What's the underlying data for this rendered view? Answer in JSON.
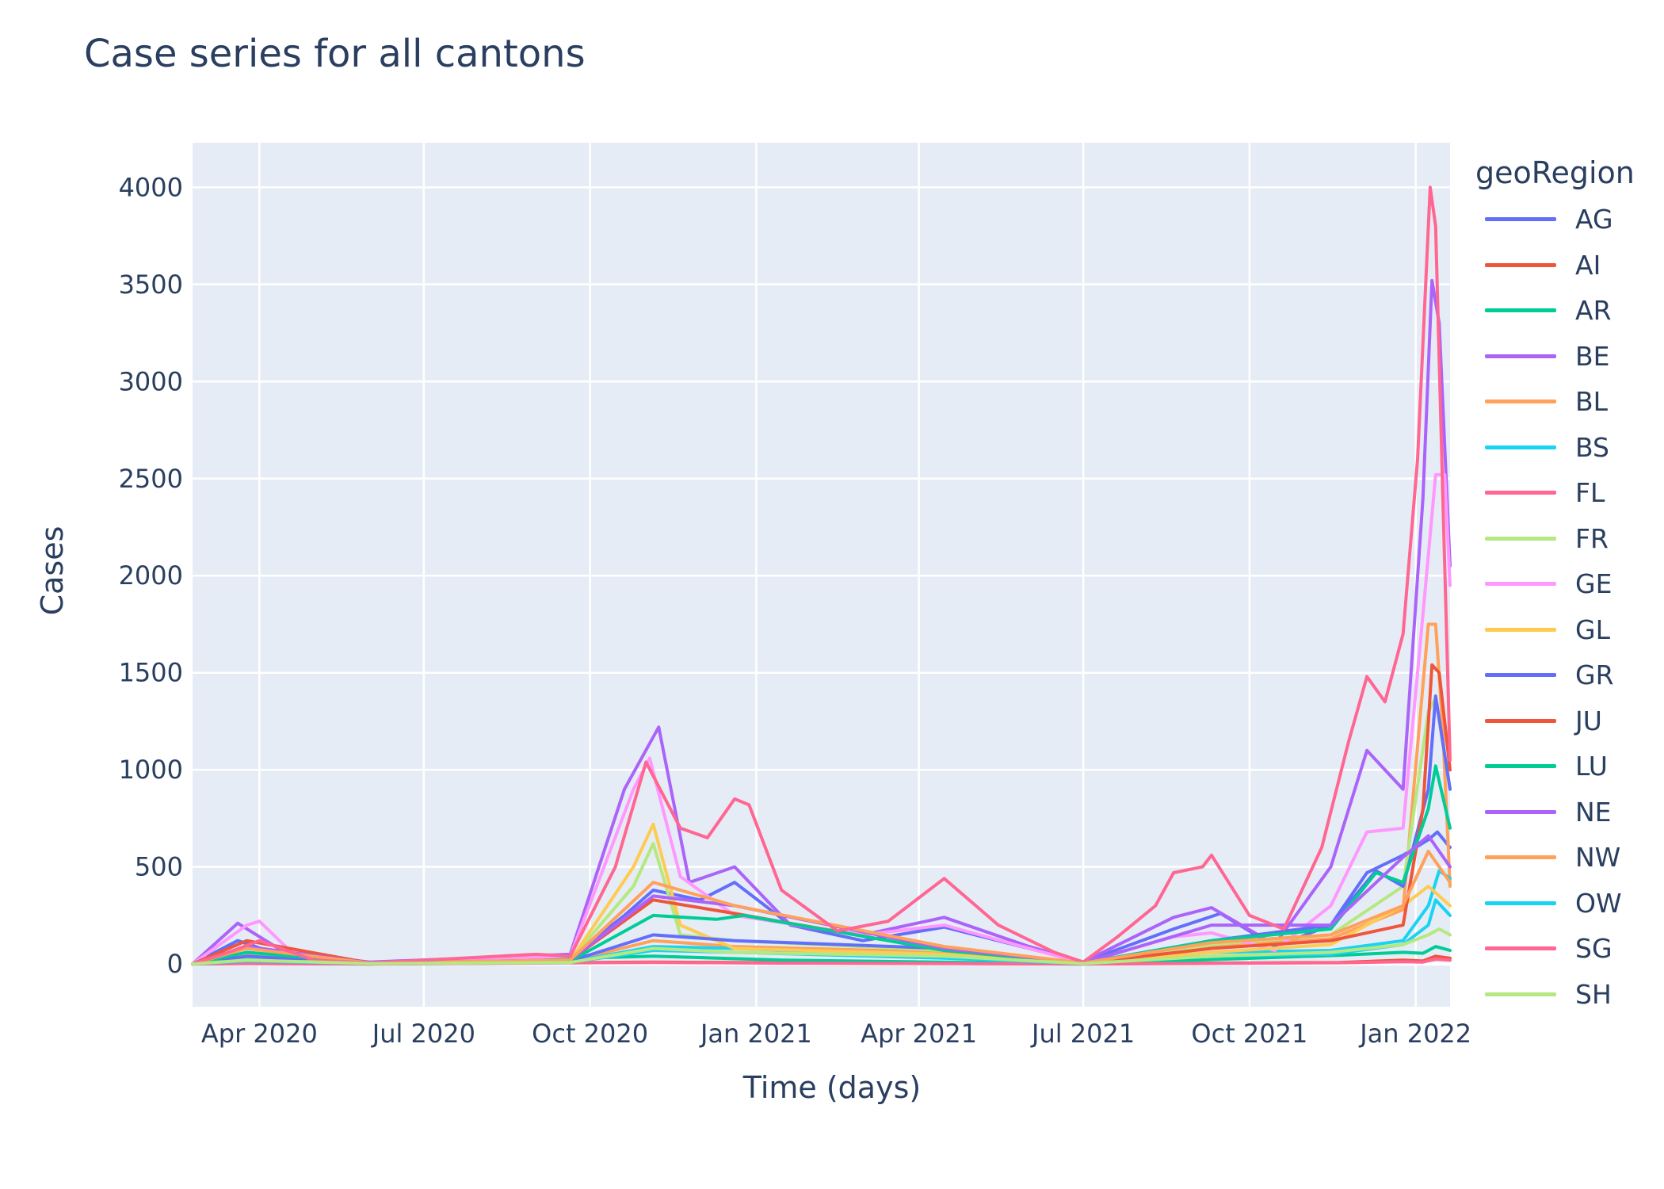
{
  "chart_data": {
    "type": "line",
    "title": "Case series for all cantons",
    "xlabel": "Time (days)",
    "ylabel": "Cases",
    "legend_title": "geoRegion",
    "legend_position": "right",
    "grid": true,
    "xlim": [
      "2020-02-24",
      "2022-01-20"
    ],
    "ylim": [
      -220,
      4230
    ],
    "x_ticks": [
      {
        "date": "2020-04-01",
        "label": "Apr 2020"
      },
      {
        "date": "2020-07-01",
        "label": "Jul 2020"
      },
      {
        "date": "2020-10-01",
        "label": "Oct 2020"
      },
      {
        "date": "2021-01-01",
        "label": "Jan 2021"
      },
      {
        "date": "2021-04-01",
        "label": "Apr 2021"
      },
      {
        "date": "2021-07-01",
        "label": "Jul 2021"
      },
      {
        "date": "2021-10-01",
        "label": "Oct 2021"
      },
      {
        "date": "2022-01-01",
        "label": "Jan 2022"
      }
    ],
    "y_ticks": [
      0,
      500,
      1000,
      1500,
      2000,
      2500,
      3000,
      3500,
      4000
    ],
    "series": [
      {
        "name": "AG",
        "color": "#636efa",
        "x": [
          "2020-02-24",
          "2020-03-20",
          "2020-04-15",
          "2020-06-01",
          "2020-09-20",
          "2020-10-20",
          "2020-11-05",
          "2020-12-01",
          "2020-12-20",
          "2021-01-20",
          "2021-03-01",
          "2021-04-15",
          "2021-06-01",
          "2021-07-01",
          "2021-08-20",
          "2021-09-15",
          "2021-10-15",
          "2021-11-15",
          "2021-12-05",
          "2021-12-25",
          "2022-01-08",
          "2022-01-13",
          "2022-01-20"
        ],
        "y": [
          0,
          120,
          40,
          5,
          30,
          250,
          380,
          330,
          420,
          200,
          120,
          190,
          80,
          10,
          180,
          260,
          90,
          200,
          470,
          560,
          640,
          680,
          600
        ]
      },
      {
        "name": "AI",
        "color": "#ef553b",
        "x": [
          "2020-02-24",
          "2020-03-25",
          "2020-06-01",
          "2020-11-05",
          "2021-01-15",
          "2021-07-01",
          "2021-11-20",
          "2021-12-25",
          "2022-01-05",
          "2022-01-12",
          "2022-01-20"
        ],
        "y": [
          0,
          3,
          0,
          10,
          6,
          0,
          8,
          20,
          15,
          40,
          30
        ]
      },
      {
        "name": "AR",
        "color": "#00cc96",
        "x": [
          "2020-02-24",
          "2020-03-25",
          "2020-06-01",
          "2020-11-05",
          "2021-01-15",
          "2021-07-01",
          "2021-11-20",
          "2021-12-25",
          "2022-01-05",
          "2022-01-12",
          "2022-01-20"
        ],
        "y": [
          0,
          8,
          0,
          40,
          20,
          0,
          45,
          60,
          55,
          90,
          70
        ]
      },
      {
        "name": "BE",
        "color": "#ab63fa",
        "x": [
          "2020-02-24",
          "2020-03-20",
          "2020-04-15",
          "2020-06-01",
          "2020-09-20",
          "2020-10-20",
          "2020-11-08",
          "2020-11-25",
          "2020-12-20",
          "2021-01-20",
          "2021-03-01",
          "2021-04-15",
          "2021-06-01",
          "2021-07-01",
          "2021-08-20",
          "2021-09-10",
          "2021-10-15",
          "2021-11-15",
          "2021-12-05",
          "2021-12-25",
          "2022-01-05",
          "2022-01-10",
          "2022-01-14",
          "2022-01-20"
        ],
        "y": [
          0,
          210,
          60,
          10,
          50,
          900,
          1220,
          420,
          500,
          200,
          150,
          240,
          90,
          10,
          240,
          290,
          100,
          500,
          1100,
          900,
          2400,
          3520,
          3300,
          2050
        ]
      },
      {
        "name": "BL",
        "color": "#ffa15a",
        "x": [
          "2020-02-24",
          "2020-03-25",
          "2020-06-01",
          "2020-09-20",
          "2020-11-05",
          "2020-12-20",
          "2021-04-15",
          "2021-07-01",
          "2021-09-10",
          "2021-11-15",
          "2021-12-25",
          "2022-01-08",
          "2022-01-12",
          "2022-01-16",
          "2022-01-20"
        ],
        "y": [
          0,
          50,
          5,
          15,
          120,
          90,
          60,
          5,
          90,
          130,
          280,
          1750,
          1750,
          1200,
          400
        ]
      },
      {
        "name": "BS",
        "color": "#19d3f3",
        "x": [
          "2020-02-24",
          "2020-03-25",
          "2020-06-01",
          "2020-09-20",
          "2020-11-05",
          "2020-12-20",
          "2021-04-15",
          "2021-07-01",
          "2021-09-10",
          "2021-11-15",
          "2021-12-25",
          "2022-01-08",
          "2022-01-14",
          "2022-01-20"
        ],
        "y": [
          0,
          30,
          3,
          10,
          90,
          80,
          40,
          3,
          60,
          70,
          120,
          300,
          480,
          440
        ]
      },
      {
        "name": "FL",
        "color": "#ff6692",
        "x": [
          "2020-02-24",
          "2020-03-25",
          "2020-06-01",
          "2020-11-05",
          "2021-01-15",
          "2021-07-01",
          "2021-11-20",
          "2021-12-25",
          "2022-01-05",
          "2022-01-12",
          "2022-01-20"
        ],
        "y": [
          0,
          2,
          0,
          8,
          4,
          0,
          6,
          12,
          10,
          25,
          20
        ]
      },
      {
        "name": "FR",
        "color": "#b6e880",
        "x": [
          "2020-02-24",
          "2020-03-25",
          "2020-06-01",
          "2020-09-20",
          "2020-10-25",
          "2020-11-05",
          "2020-11-20",
          "2020-12-20",
          "2021-04-15",
          "2021-07-01",
          "2021-09-10",
          "2021-11-15",
          "2021-12-25",
          "2022-01-08",
          "2022-01-12",
          "2022-01-20"
        ],
        "y": [
          0,
          60,
          5,
          20,
          400,
          620,
          150,
          120,
          70,
          5,
          100,
          150,
          400,
          1300,
          1370,
          900
        ]
      },
      {
        "name": "GE",
        "color": "#ff97ff",
        "x": [
          "2020-02-24",
          "2020-03-25",
          "2020-04-01",
          "2020-04-20",
          "2020-06-01",
          "2020-09-20",
          "2020-10-25",
          "2020-11-03",
          "2020-11-20",
          "2020-12-20",
          "2021-03-01",
          "2021-04-15",
          "2021-06-01",
          "2021-07-01",
          "2021-08-20",
          "2021-09-10",
          "2021-10-15",
          "2021-11-15",
          "2021-12-05",
          "2021-12-25",
          "2022-01-05",
          "2022-01-12",
          "2022-01-17",
          "2022-01-20"
        ],
        "y": [
          0,
          200,
          220,
          50,
          5,
          40,
          900,
          1060,
          450,
          250,
          150,
          200,
          80,
          5,
          140,
          160,
          70,
          300,
          680,
          700,
          1800,
          2520,
          2520,
          1950
        ]
      },
      {
        "name": "GL",
        "color": "#fecb52",
        "x": [
          "2020-02-24",
          "2020-03-25",
          "2020-06-01",
          "2020-09-20",
          "2020-10-25",
          "2020-11-05",
          "2020-11-20",
          "2020-12-20",
          "2021-04-15",
          "2021-07-01",
          "2021-09-10",
          "2021-11-15",
          "2021-12-25",
          "2022-01-08",
          "2022-01-20"
        ],
        "y": [
          0,
          40,
          3,
          15,
          500,
          720,
          200,
          80,
          50,
          3,
          60,
          100,
          300,
          400,
          300
        ]
      },
      {
        "name": "GR",
        "color": "#636efa",
        "x": [
          "2020-02-24",
          "2020-03-25",
          "2020-06-01",
          "2020-09-20",
          "2020-11-05",
          "2020-12-20",
          "2021-04-15",
          "2021-07-01",
          "2021-09-10",
          "2021-11-15",
          "2021-12-10",
          "2021-12-25",
          "2022-01-08",
          "2022-01-12",
          "2022-01-20"
        ],
        "y": [
          0,
          40,
          3,
          15,
          150,
          120,
          80,
          5,
          120,
          200,
          480,
          400,
          900,
          1380,
          900
        ]
      },
      {
        "name": "JU",
        "color": "#ef553b",
        "x": [
          "2020-02-24",
          "2020-03-25",
          "2020-06-01",
          "2020-09-20",
          "2020-11-05",
          "2020-12-20",
          "2021-04-15",
          "2021-07-01",
          "2021-09-10",
          "2021-11-15",
          "2021-12-25",
          "2022-01-05",
          "2022-01-10",
          "2022-01-14",
          "2022-01-20"
        ],
        "y": [
          0,
          120,
          5,
          20,
          330,
          260,
          70,
          5,
          80,
          120,
          200,
          800,
          1540,
          1500,
          1000
        ]
      },
      {
        "name": "LU",
        "color": "#00cc96",
        "x": [
          "2020-02-24",
          "2020-03-25",
          "2020-06-01",
          "2020-09-20",
          "2020-11-05",
          "2020-12-10",
          "2020-12-25",
          "2021-04-15",
          "2021-07-01",
          "2021-09-10",
          "2021-11-15",
          "2021-12-10",
          "2021-12-25",
          "2022-01-08",
          "2022-01-12",
          "2022-01-20"
        ],
        "y": [
          0,
          60,
          5,
          15,
          250,
          230,
          250,
          70,
          5,
          120,
          180,
          470,
          420,
          800,
          1020,
          700
        ]
      },
      {
        "name": "NE",
        "color": "#ab63fa",
        "x": [
          "2020-02-24",
          "2020-03-25",
          "2020-06-01",
          "2020-09-20",
          "2020-11-05",
          "2020-12-20",
          "2021-04-15",
          "2021-07-01",
          "2021-09-10",
          "2021-11-15",
          "2021-12-25",
          "2022-01-08",
          "2022-01-20"
        ],
        "y": [
          0,
          90,
          5,
          20,
          350,
          300,
          80,
          5,
          200,
          200,
          550,
          660,
          500
        ]
      },
      {
        "name": "NW",
        "color": "#ffa15a",
        "x": [
          "2020-02-24",
          "2020-03-25",
          "2020-06-01",
          "2020-09-20",
          "2020-11-05",
          "2020-12-20",
          "2021-04-15",
          "2021-07-01",
          "2021-09-10",
          "2021-11-15",
          "2021-12-25",
          "2022-01-08",
          "2022-01-20"
        ],
        "y": [
          0,
          80,
          5,
          20,
          420,
          300,
          90,
          5,
          110,
          150,
          300,
          580,
          420
        ]
      },
      {
        "name": "OW",
        "color": "#19d3f3",
        "x": [
          "2020-02-24",
          "2020-03-25",
          "2020-06-01",
          "2020-09-20",
          "2020-11-05",
          "2020-12-20",
          "2021-04-15",
          "2021-07-01",
          "2021-09-10",
          "2021-11-15",
          "2021-12-25",
          "2022-01-08",
          "2022-01-12",
          "2022-01-20"
        ],
        "y": [
          0,
          15,
          2,
          8,
          70,
          60,
          30,
          2,
          40,
          50,
          100,
          200,
          330,
          250
        ]
      },
      {
        "name": "SG",
        "color": "#ff6692",
        "x": [
          "2020-02-24",
          "2020-03-15",
          "2020-04-01",
          "2020-05-01",
          "2020-06-01",
          "2020-09-01",
          "2020-09-20",
          "2020-10-15",
          "2020-11-01",
          "2020-11-20",
          "2020-12-05",
          "2020-12-20",
          "2020-12-28",
          "2021-01-15",
          "2021-02-15",
          "2021-03-15",
          "2021-04-15",
          "2021-05-15",
          "2021-06-15",
          "2021-07-01",
          "2021-07-20",
          "2021-08-10",
          "2021-08-20",
          "2021-09-05",
          "2021-09-10",
          "2021-10-01",
          "2021-10-20",
          "2021-11-10",
          "2021-11-25",
          "2021-12-05",
          "2021-12-15",
          "2021-12-25",
          "2022-01-02",
          "2022-01-06",
          "2022-01-09",
          "2022-01-12",
          "2022-01-16",
          "2022-01-20"
        ],
        "y": [
          0,
          60,
          120,
          20,
          5,
          50,
          40,
          500,
          1040,
          700,
          650,
          850,
          820,
          380,
          170,
          220,
          440,
          200,
          60,
          10,
          140,
          300,
          470,
          500,
          560,
          250,
          180,
          600,
          1150,
          1480,
          1350,
          1700,
          2600,
          3400,
          4000,
          3800,
          2400,
          1050
        ]
      },
      {
        "name": "SH",
        "color": "#b6e880",
        "x": [
          "2020-02-24",
          "2020-03-25",
          "2020-06-01",
          "2020-09-20",
          "2020-11-05",
          "2020-12-20",
          "2021-04-15",
          "2021-07-01",
          "2021-09-10",
          "2021-11-15",
          "2021-12-25",
          "2022-01-08",
          "2022-01-14",
          "2022-01-20"
        ],
        "y": [
          0,
          20,
          2,
          8,
          80,
          60,
          40,
          2,
          40,
          60,
          100,
          150,
          180,
          150
        ]
      }
    ]
  }
}
